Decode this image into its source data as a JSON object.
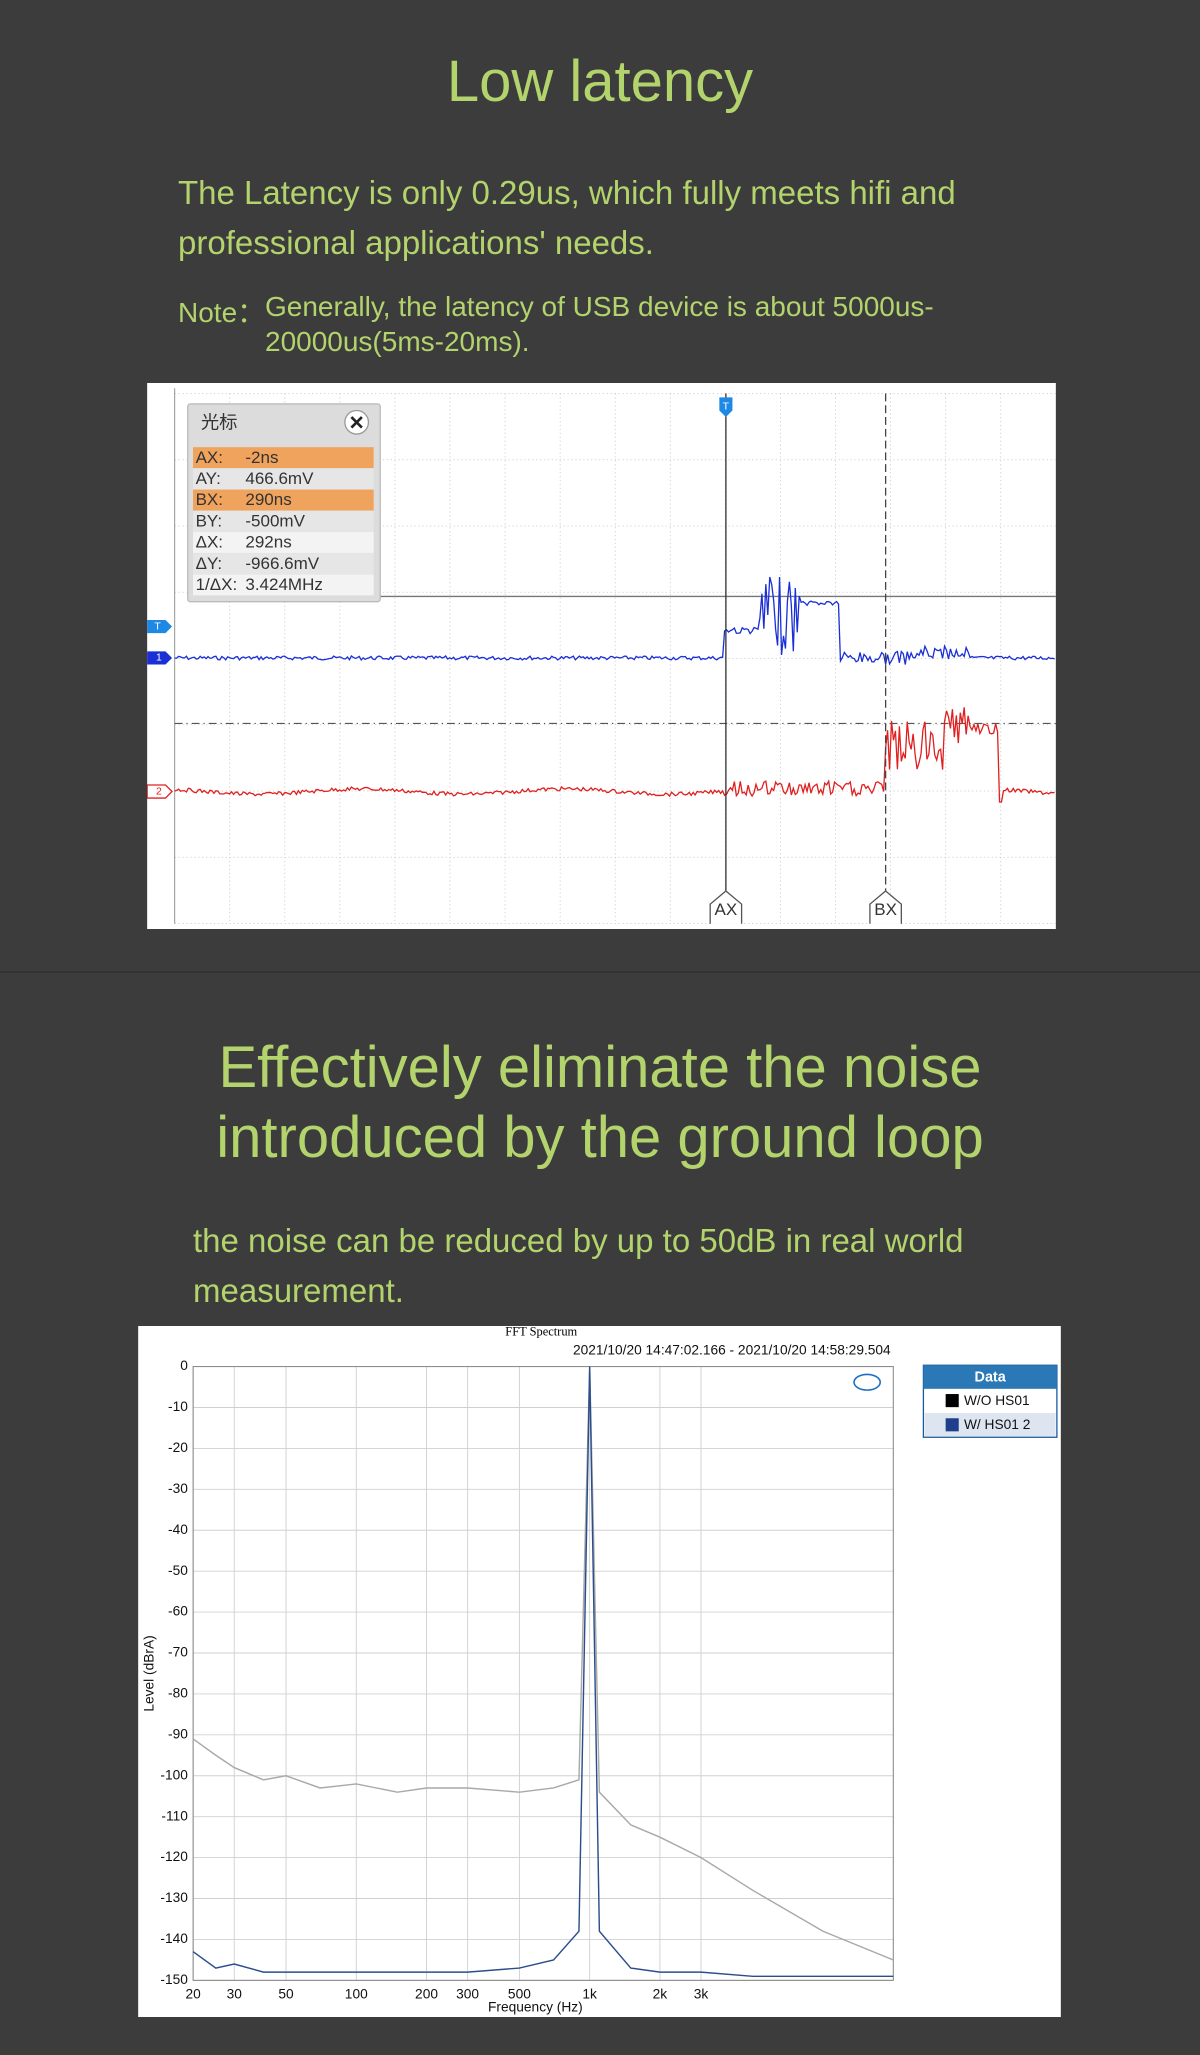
{
  "header": {
    "title": "Low latency",
    "text_lines": [
      "The Latency is only 0.29us, which fully meets hifi and",
      "professional applications' needs."
    ],
    "note_label": "Note：",
    "note_lines": [
      "Generally, the latency of USB device is about 5000us-",
      "20000us(5ms-20ms)."
    ]
  },
  "oscilloscope": {
    "panel_title": "光标",
    "rows": [
      {
        "label": "AX:",
        "value": "-2ns"
      },
      {
        "label": "AY:",
        "value": "466.6mV"
      },
      {
        "label": "BX:",
        "value": "290ns"
      },
      {
        "label": "BY:",
        "value": "-500mV"
      },
      {
        "label": "ΔX:",
        "value": "292ns"
      },
      {
        "label": "ΔY:",
        "value": "-966.6mV"
      },
      {
        "label": "1/ΔX:",
        "value": "3.424MHz"
      }
    ],
    "cursor_a": "AX",
    "cursor_b": "BX",
    "trigger": "T",
    "channels": [
      "1",
      "2"
    ]
  },
  "section2": {
    "title_lines": [
      "Effectively eliminate the noise",
      "introduced by the ground loop"
    ],
    "text_lines": [
      "the noise can be reduced by up to 50dB in real world",
      "measurement."
    ]
  },
  "chart_data": {
    "type": "line",
    "title": "FFT Spectrum",
    "subtitle": "2021/10/20 14:47:02.166 - 2021/10/20 14:58:29.504",
    "x_label": "Frequency (Hz)",
    "y_label": "Level (dBrA)",
    "x_scale": "log",
    "x": [
      20,
      25,
      30,
      40,
      50,
      70,
      100,
      150,
      200,
      300,
      500,
      700,
      900,
      1000,
      1100,
      1500,
      2000,
      3000,
      5000,
      10000,
      20000
    ],
    "series": [
      {
        "name": "W/O HS01",
        "color": "#a9a9a9",
        "legend_color": "#000000",
        "values": [
          -91,
          -95,
          -98,
          -101,
          -100,
          -103,
          -102,
          -104,
          -103,
          -103,
          -104,
          -103,
          -101,
          0,
          -104,
          -112,
          -115,
          -120,
          -128,
          -138,
          -145
        ]
      },
      {
        "name": "W/ HS01 2",
        "color": "#2c4f8c",
        "legend_color": "#1f3f8a",
        "values": [
          -143,
          -147,
          -146,
          -148,
          -148,
          -148,
          -148,
          -148,
          -148,
          -148,
          -147,
          -145,
          -138,
          0,
          -138,
          -147,
          -148,
          -148,
          -149,
          -149,
          -149
        ]
      }
    ],
    "xlim": [
      20,
      20000
    ],
    "ylim": [
      -150,
      0
    ],
    "xticks": [
      20,
      30,
      50,
      100,
      200,
      300,
      500,
      {
        "value": 1000,
        "label": "1k"
      },
      {
        "value": 2000,
        "label": "2k"
      },
      {
        "value": 3000,
        "label": "3k"
      }
    ],
    "yticks": [
      0,
      -10,
      -20,
      -30,
      -40,
      -50,
      -60,
      -70,
      -80,
      -90,
      -100,
      -110,
      -120,
      -130,
      -140,
      -150
    ],
    "grid": true,
    "legend_title": "Data",
    "legend": "right"
  }
}
